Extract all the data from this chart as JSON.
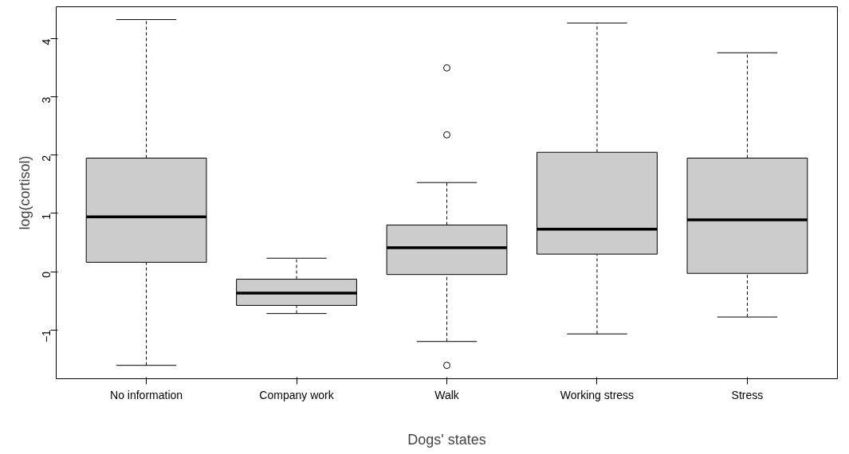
{
  "chart_data": {
    "type": "box",
    "xlabel": "Dogs' states",
    "ylabel": "log(cortisol)",
    "categories": [
      "No information",
      "Company work",
      "Walk",
      "Working stress",
      "Stress"
    ],
    "ylim": [
      -1.84,
      4.55
    ],
    "yticks": [
      -1,
      0,
      1,
      2,
      3,
      4
    ],
    "series": [
      {
        "color": "#cccccc",
        "boxes": [
          {
            "low": -1.61,
            "q1": 0.16,
            "median": 0.94,
            "q3": 1.95,
            "high": 4.33
          },
          {
            "low": -0.72,
            "q1": -0.58,
            "median": -0.37,
            "q3": -0.13,
            "high": 0.23
          },
          {
            "low": -1.2,
            "q1": -0.05,
            "median": 0.41,
            "q3": 0.8,
            "high": 1.53,
            "outliers": [
              3.5,
              2.35,
              -1.61
            ]
          },
          {
            "low": -1.07,
            "q1": 0.3,
            "median": 0.73,
            "q3": 2.05,
            "high": 4.27
          },
          {
            "low": -0.78,
            "q1": -0.03,
            "median": 0.89,
            "q3": 1.95,
            "high": 3.76
          }
        ]
      }
    ]
  }
}
